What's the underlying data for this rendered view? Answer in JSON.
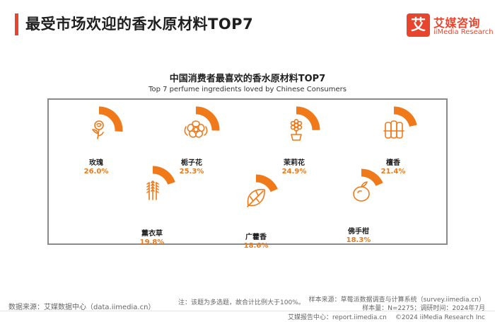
{
  "header": {
    "title": "最受市场欢迎的香水原材料TOP7",
    "accent_color": "#e8452e"
  },
  "logo": {
    "mark": "艾",
    "name_cn": "艾媒咨询",
    "name_en": "iiMedia Research"
  },
  "chart_data": {
    "type": "donut-gauge",
    "title": "中国消费者最喜欢的香水原材料TOP7",
    "subtitle": "Top 7  perfume ingredients loved by Chinese Consumers",
    "unit": "%",
    "arc_color": "#f07a1a",
    "track_color": "#ffffff",
    "label_value_color": "#e87a1a",
    "items": [
      {
        "name": "玫瑰",
        "value": 26.0,
        "label": "26.0%",
        "icon": "rose-icon"
      },
      {
        "name": "栀子花",
        "value": 25.3,
        "label": "25.3%",
        "icon": "gardenia-icon"
      },
      {
        "name": "茉莉花",
        "value": 24.9,
        "label": "24.9%",
        "icon": "jasmine-icon"
      },
      {
        "name": "檀香",
        "value": 21.4,
        "label": "21.4%",
        "icon": "sandalwood-icon"
      },
      {
        "name": "薰衣草",
        "value": 19.8,
        "label": "19.8%",
        "icon": "lavender-icon"
      },
      {
        "name": "广藿香",
        "value": 18.6,
        "label": "18.6%",
        "icon": "patchouli-leaf-icon"
      },
      {
        "name": "佛手柑",
        "value": 18.3,
        "label": "18.3%",
        "icon": "bergamot-icon"
      }
    ]
  },
  "footer": {
    "source": "数据来源：艾媒数据中心（data.iimedia.cn）",
    "note": "注：该题为多选题，故合计比例大于100%。",
    "sample_source": "样本来源：草莓派数据调查与计算系统（survey.iimedia.cn）",
    "sample_info": "样本量：N=2275；调研时间：2024年7月",
    "report_center": "艾媒报告中心：report.iimedia.cn",
    "copyright": "©2024  iiMedia Research  Inc"
  }
}
